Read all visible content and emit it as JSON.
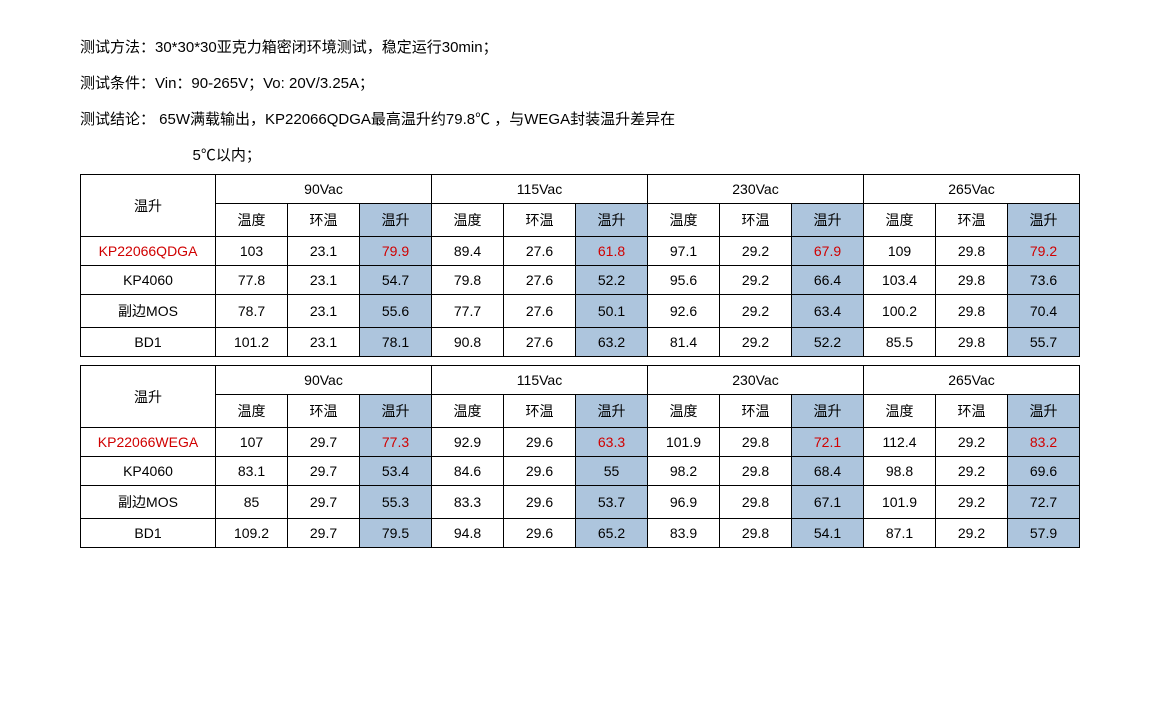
{
  "intro": {
    "l1": "测试方法：30*30*30亚克力箱密闭环境测试，稳定运行30min；",
    "l2": "测试条件：Vin：90-265V；Vo: 20V/3.25A；",
    "l3a": "测试结论： 65W满载输出，KP22066QDGA最高温升约79.8℃ ，与WEGA封装温升差异在",
    "l3b": "5℃以内；"
  },
  "colors": {
    "shaded_bg": "#adc5dd",
    "highlight_text": "#d00000"
  },
  "tables": [
    {
      "corner_label": "温升",
      "voltage_headers": [
        "90Vac",
        "115Vac",
        "230Vac",
        "265Vac"
      ],
      "sub_headers": [
        "温度",
        "环温",
        "温升"
      ],
      "rows": [
        {
          "label": "KP22066QDGA",
          "highlight_label": true,
          "highlight_rise": true,
          "cells": [
            [
              103,
              23.1,
              79.9
            ],
            [
              89.4,
              27.6,
              61.8
            ],
            [
              97.1,
              29.2,
              67.9
            ],
            [
              109,
              29.8,
              79.2
            ]
          ]
        },
        {
          "label": "KP4060",
          "cells": [
            [
              77.8,
              23.1,
              54.7
            ],
            [
              79.8,
              27.6,
              52.2
            ],
            [
              95.6,
              29.2,
              66.4
            ],
            [
              103.4,
              29.8,
              73.6
            ]
          ]
        },
        {
          "label": "副边MOS",
          "cells": [
            [
              78.7,
              23.1,
              55.6
            ],
            [
              77.7,
              27.6,
              50.1
            ],
            [
              92.6,
              29.2,
              63.4
            ],
            [
              100.2,
              29.8,
              70.4
            ]
          ]
        },
        {
          "label": "BD1",
          "cells": [
            [
              101.2,
              23.1,
              78.1
            ],
            [
              90.8,
              27.6,
              63.2
            ],
            [
              81.4,
              29.2,
              52.2
            ],
            [
              85.5,
              29.8,
              55.7
            ]
          ]
        }
      ]
    },
    {
      "corner_label": "温升",
      "voltage_headers": [
        "90Vac",
        "115Vac",
        "230Vac",
        "265Vac"
      ],
      "sub_headers": [
        "温度",
        "环温",
        "温升"
      ],
      "rows": [
        {
          "label": "KP22066WEGA",
          "highlight_label": true,
          "highlight_rise": true,
          "cells": [
            [
              107,
              29.7,
              77.3
            ],
            [
              92.9,
              29.6,
              63.3
            ],
            [
              101.9,
              29.8,
              72.1
            ],
            [
              112.4,
              29.2,
              83.2
            ]
          ]
        },
        {
          "label": "KP4060",
          "cells": [
            [
              83.1,
              29.7,
              53.4
            ],
            [
              84.6,
              29.6,
              55
            ],
            [
              98.2,
              29.8,
              68.4
            ],
            [
              98.8,
              29.2,
              69.6
            ]
          ]
        },
        {
          "label": "副边MOS",
          "cells": [
            [
              85,
              29.7,
              55.3
            ],
            [
              83.3,
              29.6,
              53.7
            ],
            [
              96.9,
              29.8,
              67.1
            ],
            [
              101.9,
              29.2,
              72.7
            ]
          ]
        },
        {
          "label": "BD1",
          "cells": [
            [
              109.2,
              29.7,
              79.5
            ],
            [
              94.8,
              29.6,
              65.2
            ],
            [
              83.9,
              29.8,
              54.1
            ],
            [
              87.1,
              29.2,
              57.9
            ]
          ]
        }
      ]
    }
  ]
}
